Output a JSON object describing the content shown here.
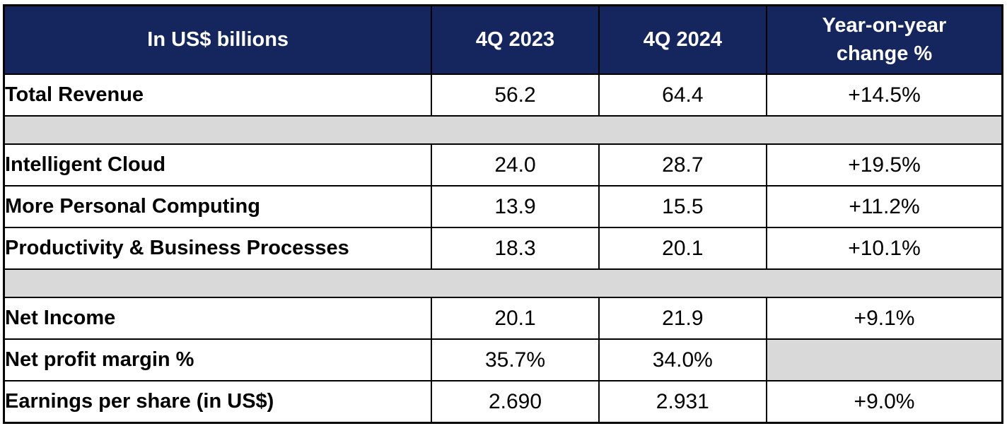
{
  "colors": {
    "header_bg": "#15265E",
    "header_text": "#FFFFFF",
    "spacer_bg": "#D9D9D9",
    "border": "#000000",
    "row_bg": "#FFFFFF",
    "body_text": "#000000"
  },
  "table": {
    "header": {
      "metric": "In US$ billions",
      "q4_2023": "4Q 2023",
      "q4_2024": "4Q 2024",
      "yoy_line1": "Year-on-year",
      "yoy_line2": "change %"
    },
    "rows": [
      {
        "type": "data",
        "label": "Total Revenue",
        "q4_2023": "56.2",
        "q4_2024": "64.4",
        "yoy": "+14.5%"
      },
      {
        "type": "spacer"
      },
      {
        "type": "data",
        "label": "Intelligent Cloud",
        "q4_2023": "24.0",
        "q4_2024": "28.7",
        "yoy": "+19.5%"
      },
      {
        "type": "data",
        "label": "More Personal Computing",
        "q4_2023": "13.9",
        "q4_2024": "15.5",
        "yoy": "+11.2%"
      },
      {
        "type": "data",
        "label": "Productivity & Business Processes",
        "q4_2023": "18.3",
        "q4_2024": "20.1",
        "yoy": "+10.1%"
      },
      {
        "type": "spacer"
      },
      {
        "type": "data",
        "label": "Net Income",
        "q4_2023": "20.1",
        "q4_2024": "21.9",
        "yoy": "+9.1%"
      },
      {
        "type": "data",
        "label": "Net profit margin %",
        "q4_2023": "35.7%",
        "q4_2024": "34.0%",
        "yoy": "",
        "yoy_grayed": true
      },
      {
        "type": "data",
        "label": "Earnings per share (in US$)",
        "q4_2023": "2.690",
        "q4_2024": "2.931",
        "yoy": "+9.0%"
      }
    ]
  },
  "chart_data": {
    "type": "table",
    "title": "In US$ billions",
    "columns": [
      "In US$ billions",
      "4Q 2023",
      "4Q 2024",
      "Year-on-year change %"
    ],
    "rows": [
      [
        "Total Revenue",
        "56.2",
        "64.4",
        "+14.5%"
      ],
      [
        "Intelligent Cloud",
        "24.0",
        "28.7",
        "+19.5%"
      ],
      [
        "More Personal Computing",
        "13.9",
        "15.5",
        "+11.2%"
      ],
      [
        "Productivity & Business Processes",
        "18.3",
        "20.1",
        "+10.1%"
      ],
      [
        "Net Income",
        "20.1",
        "21.9",
        "+9.1%"
      ],
      [
        "Net profit margin %",
        "35.7%",
        "34.0%",
        ""
      ],
      [
        "Earnings per share (in US$)",
        "2.690",
        "2.931",
        "+9.0%"
      ]
    ]
  }
}
